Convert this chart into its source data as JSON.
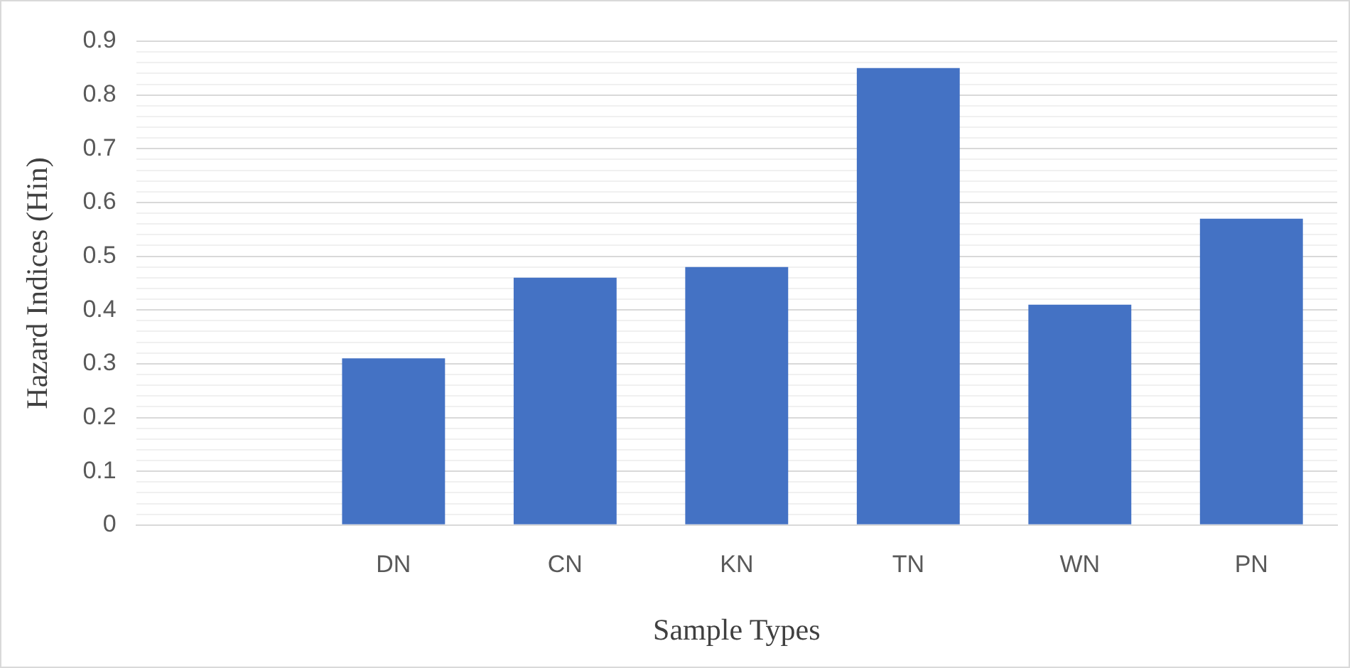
{
  "chart_data": {
    "type": "bar",
    "xlabel": "Sample Types",
    "ylabel": "Hazard Indices (Hin)",
    "categories": [
      null,
      "DN",
      "CN",
      "KN",
      "TN",
      "WN",
      "PN"
    ],
    "values": [
      null,
      0.31,
      0.46,
      0.48,
      0.85,
      0.41,
      0.57
    ],
    "color": "#4472c4",
    "ylim": [
      0,
      0.9
    ],
    "yticks": [
      0,
      {
        "value": 0.02,
        "label": null
      },
      {
        "value": 0.04,
        "label": null
      },
      {
        "value": 0.06,
        "label": null
      },
      {
        "value": 0.08,
        "label": null
      },
      0.1,
      {
        "value": 0.12,
        "label": null
      },
      {
        "value": 0.14,
        "label": null
      },
      {
        "value": 0.16,
        "label": null
      },
      {
        "value": 0.18,
        "label": null
      },
      0.2,
      {
        "value": 0.22,
        "label": null
      },
      {
        "value": 0.24,
        "label": null
      },
      {
        "value": 0.26,
        "label": null
      },
      {
        "value": 0.28,
        "label": null
      },
      0.3,
      {
        "value": 0.32,
        "label": null
      },
      {
        "value": 0.34,
        "label": null
      },
      {
        "value": 0.36,
        "label": null
      },
      {
        "value": 0.38,
        "label": null
      },
      0.4,
      {
        "value": 0.42,
        "label": null
      },
      {
        "value": 0.44,
        "label": null
      },
      {
        "value": 0.46,
        "label": null
      },
      {
        "value": 0.48,
        "label": null
      },
      0.5,
      {
        "value": 0.52,
        "label": null
      },
      {
        "value": 0.54,
        "label": null
      },
      {
        "value": 0.56,
        "label": null
      },
      {
        "value": 0.58,
        "label": null
      },
      0.6,
      {
        "value": 0.62,
        "label": null
      },
      {
        "value": 0.64,
        "label": null
      },
      {
        "value": 0.66,
        "label": null
      },
      {
        "value": 0.68,
        "label": null
      },
      0.7,
      {
        "value": 0.72,
        "label": null
      },
      {
        "value": 0.74,
        "label": null
      },
      {
        "value": 0.76,
        "label": null
      },
      {
        "value": 0.78,
        "label": null
      },
      0.8,
      {
        "value": 0.82,
        "label": null
      },
      {
        "value": 0.84,
        "label": null
      },
      {
        "value": 0.86,
        "label": null
      },
      {
        "value": 0.88,
        "label": null
      },
      0.9
    ],
    "grid": "y"
  }
}
